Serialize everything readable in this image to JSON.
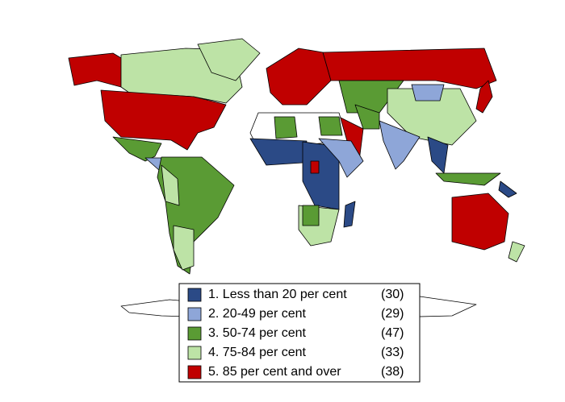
{
  "legend": {
    "entries": [
      {
        "label": "1. Less than 20 per cent",
        "count": "(30)",
        "color": "#2b4a86"
      },
      {
        "label": "2. 20-49 per cent",
        "count": "(29)",
        "color": "#8ea6d8"
      },
      {
        "label": "3. 50-74 per cent",
        "count": "(47)",
        "color": "#5a9b34"
      },
      {
        "label": "4. 75-84 per cent",
        "count": "(33)",
        "color": "#bde3a6"
      },
      {
        "label": "5. 85 per cent and over",
        "count": "(38)",
        "color": "#c00000"
      }
    ]
  }
}
